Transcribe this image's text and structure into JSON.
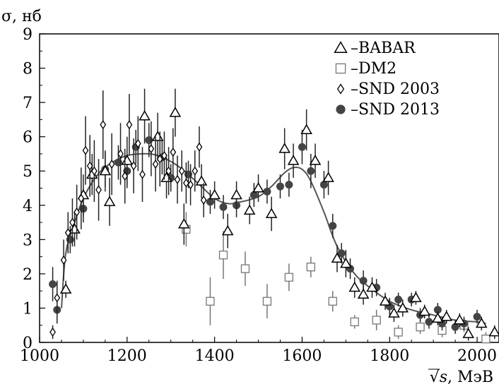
{
  "chart_data": {
    "type": "scatter",
    "title": "",
    "ylabel": "σ, нб",
    "xlabel_prefix": "√s",
    "xlabel_suffix": ", МэВ",
    "xlim": [
      1000,
      2050
    ],
    "ylim": [
      0,
      9
    ],
    "xticks": [
      1000,
      1200,
      1400,
      1600,
      1800,
      2000
    ],
    "yticks": [
      0,
      1,
      2,
      3,
      4,
      5,
      6,
      7,
      8,
      9
    ],
    "grid": false,
    "legend_position": "top-right",
    "series": [
      {
        "name": "–BABAR",
        "marker": "triangle-open",
        "color": "#000000",
        "points": [
          [
            1060,
            1.55,
            0.25
          ],
          [
            1080,
            3.3,
            0.5
          ],
          [
            1100,
            4.3,
            0.6
          ],
          [
            1120,
            4.9,
            0.6
          ],
          [
            1150,
            5.0,
            0.6
          ],
          [
            1160,
            4.1,
            0.7
          ],
          [
            1200,
            5.3,
            0.7
          ],
          [
            1240,
            6.6,
            0.8
          ],
          [
            1270,
            6.0,
            0.7
          ],
          [
            1290,
            4.8,
            0.6
          ],
          [
            1310,
            6.7,
            0.7
          ],
          [
            1330,
            3.45,
            0.6
          ],
          [
            1370,
            4.7,
            0.5
          ],
          [
            1400,
            4.3,
            0.4
          ],
          [
            1430,
            3.25,
            0.5
          ],
          [
            1450,
            4.3,
            0.4
          ],
          [
            1480,
            3.85,
            0.4
          ],
          [
            1500,
            4.5,
            0.4
          ],
          [
            1530,
            3.75,
            0.5
          ],
          [
            1560,
            5.65,
            0.6
          ],
          [
            1580,
            5.3,
            0.5
          ],
          [
            1610,
            6.2,
            0.6
          ],
          [
            1630,
            5.3,
            0.5
          ],
          [
            1660,
            4.8,
            0.5
          ],
          [
            1680,
            2.45,
            0.4
          ],
          [
            1700,
            2.3,
            0.4
          ],
          [
            1720,
            1.6,
            0.3
          ],
          [
            1740,
            1.4,
            0.3
          ],
          [
            1760,
            1.6,
            0.3
          ],
          [
            1790,
            1.2,
            0.25
          ],
          [
            1810,
            0.85,
            0.25
          ],
          [
            1830,
            1.0,
            0.25
          ],
          [
            1860,
            1.3,
            0.2
          ],
          [
            1880,
            0.9,
            0.2
          ],
          [
            1910,
            0.7,
            0.2
          ],
          [
            1930,
            0.75,
            0.2
          ],
          [
            1960,
            0.65,
            0.2
          ],
          [
            1980,
            0.25,
            0.2
          ],
          [
            2010,
            0.55,
            0.2
          ],
          [
            2040,
            0.3,
            0.2
          ]
        ]
      },
      {
        "name": "–DM2",
        "marker": "square-open",
        "color": "#777777",
        "points": [
          [
            1335,
            3.3,
            0.5
          ],
          [
            1390,
            1.2,
            0.7
          ],
          [
            1420,
            2.55,
            0.7
          ],
          [
            1470,
            2.15,
            0.5
          ],
          [
            1520,
            1.2,
            0.5
          ],
          [
            1570,
            1.9,
            0.4
          ],
          [
            1620,
            2.2,
            0.3
          ],
          [
            1670,
            1.2,
            0.3
          ],
          [
            1720,
            0.6,
            0.2
          ],
          [
            1770,
            0.65,
            0.3
          ],
          [
            1820,
            0.3,
            0.2
          ],
          [
            1870,
            0.45,
            0.2
          ],
          [
            1920,
            0.35,
            0.2
          ],
          [
            1970,
            0.5,
            0.2
          ],
          [
            2020,
            0.1,
            0.2
          ]
        ]
      },
      {
        "name": "–SND 2003",
        "marker": "diamond-open",
        "color": "#000000",
        "points": [
          [
            1030,
            0.3,
            0.2
          ],
          [
            1040,
            1.3,
            0.5
          ],
          [
            1055,
            2.4,
            0.6
          ],
          [
            1065,
            3.2,
            0.6
          ],
          [
            1075,
            3.5,
            0.7
          ],
          [
            1085,
            3.8,
            0.8
          ],
          [
            1095,
            4.2,
            0.9
          ],
          [
            1105,
            5.6,
            1.0
          ],
          [
            1115,
            5.15,
            0.9
          ],
          [
            1125,
            5.0,
            0.9
          ],
          [
            1135,
            4.45,
            0.9
          ],
          [
            1145,
            6.35,
            1.0
          ],
          [
            1165,
            5.2,
            0.9
          ],
          [
            1185,
            5.5,
            0.9
          ],
          [
            1195,
            4.85,
            0.8
          ],
          [
            1205,
            6.35,
            0.9
          ],
          [
            1215,
            5.15,
            0.8
          ],
          [
            1225,
            5.8,
            0.8
          ],
          [
            1235,
            4.9,
            0.8
          ],
          [
            1255,
            5.65,
            0.8
          ],
          [
            1265,
            5.2,
            0.8
          ],
          [
            1275,
            5.35,
            0.8
          ],
          [
            1285,
            5.45,
            0.7
          ],
          [
            1295,
            5.0,
            0.7
          ],
          [
            1305,
            5.55,
            0.7
          ],
          [
            1315,
            4.75,
            0.7
          ],
          [
            1325,
            5.0,
            0.6
          ],
          [
            1335,
            4.65,
            0.6
          ],
          [
            1345,
            4.6,
            0.6
          ],
          [
            1355,
            5.0,
            0.6
          ],
          [
            1365,
            5.7,
            0.6
          ],
          [
            1375,
            4.15,
            0.5
          ]
        ]
      },
      {
        "name": "–SND 2013",
        "marker": "circle-filled",
        "color": "#444444",
        "points": [
          [
            1030,
            1.7,
            0.5
          ],
          [
            1040,
            0.95,
            0.4
          ],
          [
            1070,
            3.0,
            0.4
          ],
          [
            1100,
            3.9,
            0.4
          ],
          [
            1150,
            5.05,
            0.5
          ],
          [
            1180,
            5.25,
            0.5
          ],
          [
            1200,
            5.0,
            0.5
          ],
          [
            1220,
            5.7,
            0.5
          ],
          [
            1250,
            5.9,
            0.5
          ],
          [
            1280,
            5.4,
            0.5
          ],
          [
            1300,
            4.8,
            0.4
          ],
          [
            1340,
            4.9,
            0.4
          ],
          [
            1390,
            4.1,
            0.35
          ],
          [
            1420,
            3.95,
            0.35
          ],
          [
            1450,
            4.0,
            0.35
          ],
          [
            1490,
            4.3,
            0.35
          ],
          [
            1520,
            4.4,
            0.35
          ],
          [
            1550,
            4.55,
            0.35
          ],
          [
            1570,
            4.6,
            0.35
          ],
          [
            1600,
            5.7,
            0.5
          ],
          [
            1620,
            5.0,
            0.5
          ],
          [
            1650,
            4.6,
            0.4
          ],
          [
            1670,
            3.4,
            0.35
          ],
          [
            1690,
            2.6,
            0.3
          ],
          [
            1710,
            2.15,
            0.3
          ],
          [
            1740,
            1.8,
            0.3
          ],
          [
            1770,
            1.6,
            0.25
          ],
          [
            1800,
            1.05,
            0.25
          ],
          [
            1820,
            1.25,
            0.2
          ],
          [
            1850,
            1.25,
            0.2
          ],
          [
            1870,
            0.8,
            0.2
          ],
          [
            1890,
            0.6,
            0.2
          ],
          [
            1910,
            0.95,
            0.2
          ],
          [
            1920,
            0.55,
            0.2
          ],
          [
            1950,
            0.45,
            0.2
          ],
          [
            1970,
            0.55,
            0.2
          ],
          [
            2000,
            0.75,
            0.2
          ]
        ]
      }
    ],
    "fit_curve": {
      "color": "#555555",
      "x": [
        1050,
        1060,
        1080,
        1100,
        1130,
        1160,
        1200,
        1250,
        1280,
        1310,
        1340,
        1370,
        1400,
        1430,
        1460,
        1500,
        1530,
        1560,
        1580,
        1600,
        1620,
        1650,
        1680,
        1720,
        1760,
        1800,
        1850,
        1900,
        1950,
        2000,
        2020
      ],
      "y": [
        1.0,
        2.6,
        3.5,
        4.2,
        4.85,
        5.2,
        5.45,
        5.5,
        5.4,
        5.2,
        4.9,
        4.55,
        4.2,
        4.05,
        4.1,
        4.25,
        4.55,
        4.95,
        5.1,
        5.05,
        4.7,
        3.8,
        2.8,
        2.0,
        1.55,
        1.2,
        0.95,
        0.8,
        0.65,
        0.6,
        0.55
      ]
    }
  }
}
